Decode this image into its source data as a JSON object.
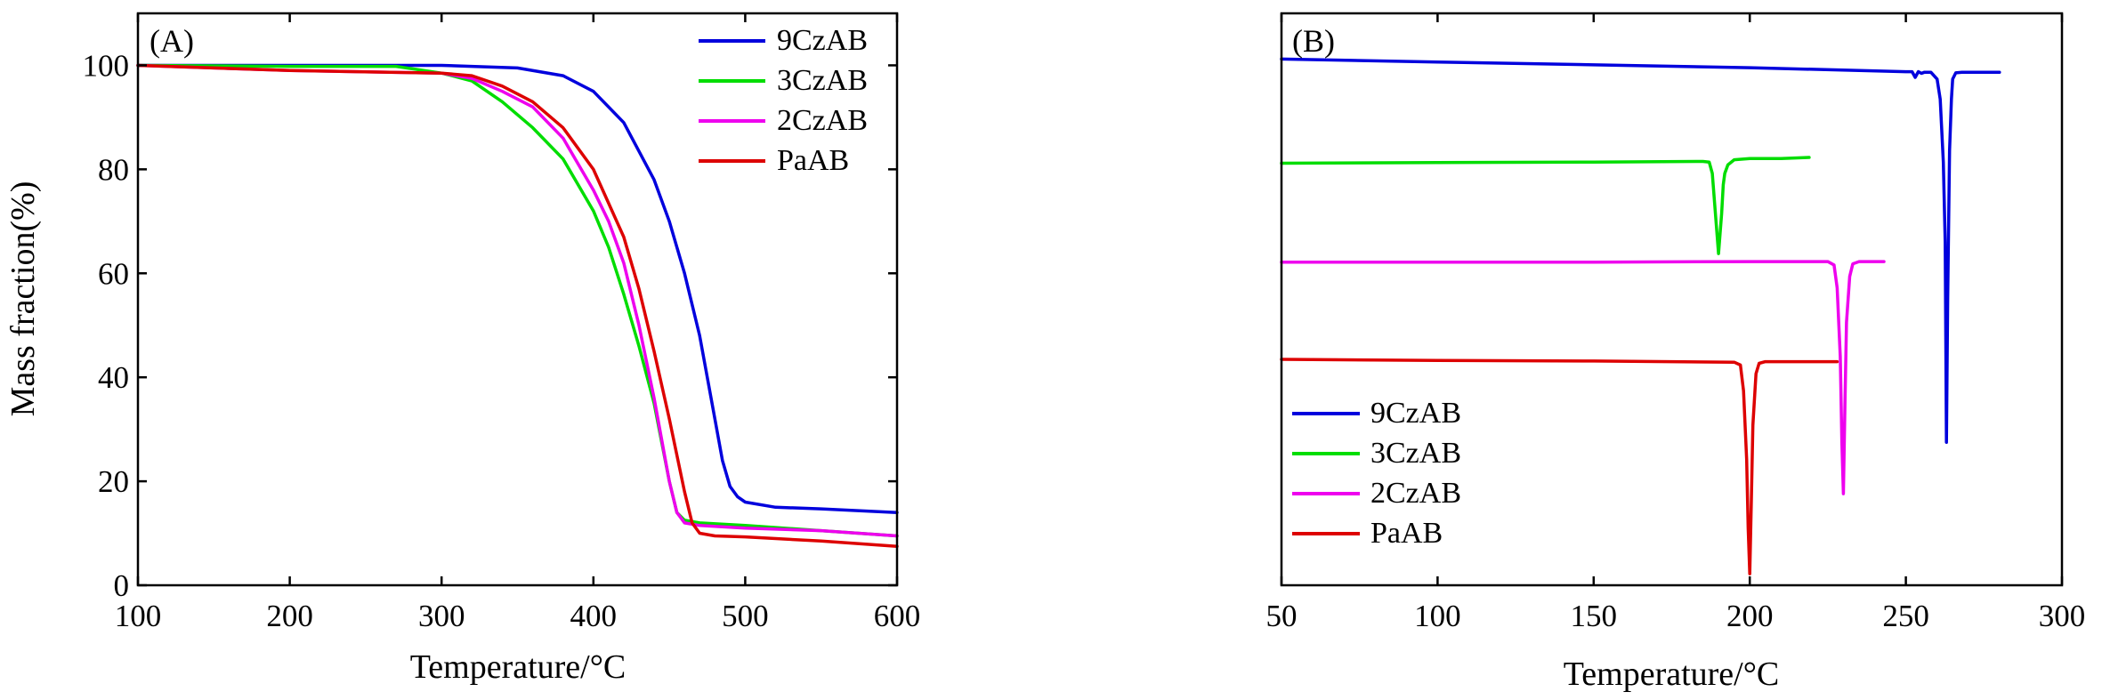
{
  "chart_data": [
    {
      "type": "line",
      "panel_label": "(A)",
      "xlabel": "Temperature/°C",
      "ylabel": "Mass fraction(%)",
      "xlim": [
        100,
        600
      ],
      "ylim": [
        0,
        110
      ],
      "xticks": [
        100,
        200,
        300,
        400,
        500,
        600
      ],
      "yticks": [
        0,
        20,
        40,
        60,
        80,
        100
      ],
      "grid": false,
      "legend": "top-right",
      "series": [
        {
          "name": "9CzAB",
          "color": "#0000dd",
          "x": [
            100,
            200,
            300,
            350,
            380,
            400,
            420,
            440,
            450,
            460,
            470,
            480,
            485,
            490,
            495,
            500,
            520,
            550,
            600
          ],
          "y": [
            100,
            100,
            100,
            99.5,
            98,
            95,
            89,
            78,
            70,
            60,
            48,
            32,
            24,
            19,
            17,
            16,
            15,
            14.7,
            14
          ]
        },
        {
          "name": "3CzAB",
          "color": "#00dd00",
          "x": [
            100,
            200,
            270,
            300,
            320,
            340,
            360,
            380,
            400,
            410,
            420,
            430,
            440,
            450,
            455,
            460,
            470,
            500,
            550,
            600
          ],
          "y": [
            100,
            99.8,
            99.8,
            98.5,
            97,
            93,
            88,
            82,
            72,
            65,
            56,
            46,
            35,
            20,
            14,
            12.5,
            12,
            11.5,
            10.5,
            9.5
          ]
        },
        {
          "name": "2CzAB",
          "color": "#ee00ee",
          "x": [
            100,
            200,
            300,
            320,
            340,
            360,
            380,
            400,
            410,
            420,
            430,
            440,
            450,
            455,
            460,
            470,
            500,
            550,
            600
          ],
          "y": [
            100,
            99,
            98.5,
            97.5,
            95,
            92,
            86,
            76,
            70,
            62,
            50,
            36,
            20,
            14,
            12,
            11.5,
            11,
            10.5,
            9.5
          ]
        },
        {
          "name": "PaAB",
          "color": "#dd0000",
          "x": [
            100,
            200,
            300,
            320,
            340,
            360,
            380,
            400,
            420,
            430,
            440,
            450,
            460,
            465,
            470,
            480,
            500,
            550,
            600
          ],
          "y": [
            100,
            99,
            98.5,
            98,
            96,
            93,
            88,
            80,
            67,
            57,
            45,
            32,
            18,
            12,
            10,
            9.5,
            9.3,
            8.5,
            7.5
          ]
        }
      ]
    },
    {
      "type": "line",
      "panel_label": "(B)",
      "xlabel": "Temperature/°C",
      "ylabel": "",
      "xlim": [
        50,
        300
      ],
      "xticks": [
        50,
        100,
        150,
        200,
        250,
        300
      ],
      "yticks": [],
      "grid": false,
      "legend": "bottom-left",
      "y_units": "stacked heat-flow traces, arbitrary units (0 = bottom, 100 = top of plot)",
      "ylim": [
        0,
        100
      ],
      "series": [
        {
          "name": "9CzAB",
          "color": "#0000dd",
          "x": [
            50,
            100,
            150,
            200,
            250,
            252,
            253,
            254,
            255,
            256,
            258,
            260,
            261,
            262,
            262.6,
            263,
            263.4,
            264,
            264.6,
            265,
            266,
            268,
            270,
            280
          ],
          "y": [
            92,
            91.5,
            91,
            90.5,
            89.8,
            89.8,
            88.8,
            89.8,
            89.5,
            89.7,
            89.7,
            88.5,
            85,
            74,
            60,
            25,
            50,
            76,
            85,
            88.5,
            89.6,
            89.7,
            89.7,
            89.7
          ]
        },
        {
          "name": "3CzAB",
          "color": "#00dd00",
          "x": [
            50,
            100,
            150,
            185,
            187,
            188,
            189,
            190,
            191,
            191.5,
            192,
            193,
            195,
            200,
            210,
            219
          ],
          "y": [
            73.8,
            73.9,
            74,
            74.1,
            74,
            72,
            65,
            58,
            65,
            70,
            72,
            73.5,
            74.4,
            74.6,
            74.6,
            74.8
          ]
        },
        {
          "name": "2CzAB",
          "color": "#ee00ee",
          "x": [
            50,
            100,
            150,
            200,
            225,
            227,
            228,
            229,
            229.5,
            230,
            230.5,
            231,
            232,
            233,
            235,
            243
          ],
          "y": [
            56.5,
            56.5,
            56.5,
            56.6,
            56.6,
            56,
            52,
            40,
            25,
            16,
            32,
            46,
            54,
            56.2,
            56.6,
            56.6
          ]
        },
        {
          "name": "PaAB",
          "color": "#dd0000",
          "x": [
            50,
            100,
            150,
            195,
            197,
            198,
            199,
            199.5,
            200,
            200.5,
            201,
            202,
            203,
            205,
            215,
            228
          ],
          "y": [
            39.5,
            39.3,
            39.2,
            39,
            38.5,
            34,
            22,
            10,
            2,
            15,
            28,
            37,
            38.8,
            39.1,
            39.1,
            39.1
          ]
        }
      ]
    }
  ]
}
